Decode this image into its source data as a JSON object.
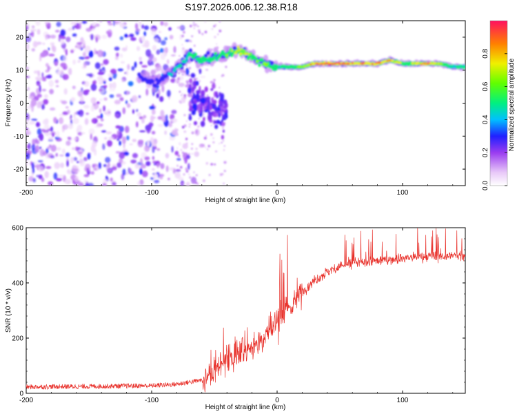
{
  "chart_data": [
    {
      "type": "heatmap",
      "title": "S197.2026.006.12.38.R18",
      "xlabel": "Height of straight line (km)",
      "ylabel": "Frequency (Hz)",
      "xlim": [
        -200,
        150
      ],
      "ylim": [
        -25,
        25
      ],
      "xticks": [
        -200,
        -100,
        0,
        100
      ],
      "yticks": [
        -20,
        -10,
        0,
        10,
        20
      ],
      "colorbar": {
        "label": "Normalized spectral amplitude",
        "range": [
          0,
          1
        ],
        "ticks": [
          "0.0",
          "0.2",
          "0.4",
          "0.6",
          "0.8"
        ]
      },
      "ridge": {
        "description_points_x": [
          -110,
          -95,
          -85,
          -75,
          -70,
          -60,
          -50,
          -40,
          -30,
          -20,
          -10,
          0,
          10,
          20,
          30,
          40,
          50,
          60,
          70,
          80,
          90,
          100,
          110,
          120,
          130,
          140,
          150
        ],
        "frequency_hz": [
          8,
          6,
          9,
          12,
          15,
          13,
          14,
          15,
          16,
          14,
          12,
          11,
          11,
          11,
          12,
          12,
          12,
          12,
          12,
          12,
          13,
          12,
          12,
          12,
          12,
          11,
          11
        ],
        "peak_amplitude": [
          0.3,
          0.35,
          0.4,
          0.45,
          0.5,
          0.55,
          0.5,
          0.6,
          0.7,
          0.6,
          0.6,
          0.5,
          0.55,
          0.6,
          0.85,
          0.9,
          0.9,
          0.85,
          0.85,
          0.9,
          0.8,
          0.6,
          0.7,
          0.85,
          0.6,
          0.5,
          0.5
        ]
      },
      "noise_region_x": [
        -200,
        -60
      ]
    },
    {
      "type": "line",
      "xlabel": "Height of straight line (km)",
      "ylabel": "SNR (10 * v/v)",
      "xlim": [
        -200,
        150
      ],
      "ylim": [
        0,
        600
      ],
      "xticks": [
        -200,
        -100,
        0,
        100
      ],
      "yticks": [
        0,
        200,
        400,
        600
      ],
      "series": [
        {
          "name": "SNR",
          "color": "#e8302a",
          "trend_x": [
            -200,
            -150,
            -100,
            -80,
            -60,
            -50,
            -40,
            -30,
            -20,
            -10,
            0,
            10,
            20,
            30,
            40,
            50,
            60,
            80,
            100,
            120,
            150
          ],
          "trend_y": [
            20,
            22,
            25,
            30,
            45,
            80,
            130,
            140,
            170,
            210,
            260,
            310,
            370,
            410,
            440,
            460,
            470,
            480,
            490,
            495,
            500
          ]
        }
      ]
    }
  ]
}
